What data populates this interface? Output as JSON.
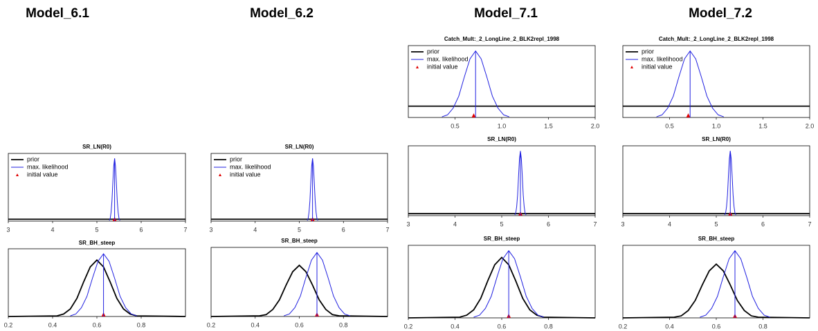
{
  "headers": [
    {
      "text": "Model_6.1",
      "color": "#e8140c"
    },
    {
      "text": "Model_6.2",
      "color": "#1fa64a"
    },
    {
      "text": "Model_7.1",
      "color": "#e8140c"
    },
    {
      "text": "Model_7.2",
      "color": "#1fa64a"
    }
  ],
  "chart_data": [
    {
      "type": "line",
      "title": "SR_LN(R0)",
      "xlim": [
        3,
        7
      ],
      "xticks": [
        3,
        4,
        5,
        6,
        7
      ],
      "ylim": [
        0,
        1.08
      ],
      "legend": "top-left",
      "estimate": 5.4,
      "series": [
        {
          "name": "prior",
          "color": "#000000",
          "x": [
            3,
            7
          ],
          "values": [
            0.03,
            0.03
          ]
        },
        {
          "name": "max. likelihood",
          "color": "#2020e0",
          "x": [
            5.28,
            5.3,
            5.32,
            5.34,
            5.36,
            5.38,
            5.4,
            5.42,
            5.44,
            5.46,
            5.48,
            5.5,
            5.52
          ],
          "values": [
            0.01,
            0.04,
            0.14,
            0.32,
            0.61,
            0.88,
            1,
            0.88,
            0.61,
            0.32,
            0.14,
            0.04,
            0.01
          ]
        },
        {
          "name": "initial value",
          "color": "#e00000",
          "x": [
            5.4
          ],
          "values": [
            0
          ]
        }
      ]
    },
    {
      "type": "line",
      "title": "SR_BH_steep",
      "xlim": [
        0.2,
        1.0
      ],
      "xticks": [
        0.2,
        0.4,
        0.6,
        0.8
      ],
      "ylim": [
        0,
        1.08
      ],
      "estimate": 0.63,
      "series": [
        {
          "color": "#000000",
          "x": [
            0.2,
            0.42,
            0.45,
            0.48,
            0.51,
            0.54,
            0.57,
            0.6,
            0.63,
            0.66,
            0.69,
            0.72,
            0.75,
            0.78,
            1.0
          ],
          "values": [
            0,
            0.01,
            0.04,
            0.12,
            0.29,
            0.55,
            0.79,
            0.9,
            0.79,
            0.55,
            0.29,
            0.12,
            0.04,
            0.01,
            0
          ]
        },
        {
          "color": "#2020e0",
          "x": [
            0.48,
            0.505,
            0.53,
            0.555,
            0.58,
            0.605,
            0.63,
            0.655,
            0.68,
            0.705,
            0.73,
            0.755,
            0.78
          ],
          "values": [
            0.01,
            0.04,
            0.14,
            0.32,
            0.61,
            0.88,
            1,
            0.88,
            0.61,
            0.32,
            0.14,
            0.04,
            0.01
          ]
        },
        {
          "color": "#e00000",
          "x": [
            0.63
          ],
          "values": [
            0
          ]
        }
      ]
    },
    {
      "type": "line",
      "title": "SR_LN(R0)",
      "xlim": [
        3,
        7
      ],
      "xticks": [
        3,
        4,
        5,
        6,
        7
      ],
      "ylim": [
        0,
        1.08
      ],
      "legend": "top-left",
      "estimate": 5.3,
      "series": [
        {
          "name": "prior",
          "color": "#000000",
          "x": [
            3,
            7
          ],
          "values": [
            0.03,
            0.03
          ]
        },
        {
          "name": "max. likelihood",
          "color": "#2020e0",
          "x": [
            5.18,
            5.2,
            5.22,
            5.24,
            5.26,
            5.28,
            5.3,
            5.32,
            5.34,
            5.36,
            5.38,
            5.4,
            5.42
          ],
          "values": [
            0.01,
            0.04,
            0.14,
            0.32,
            0.61,
            0.88,
            1,
            0.88,
            0.61,
            0.32,
            0.14,
            0.04,
            0.01
          ]
        },
        {
          "name": "initial value",
          "color": "#e00000",
          "x": [
            5.3
          ],
          "values": [
            0
          ]
        }
      ]
    },
    {
      "type": "line",
      "title": "SR_BH_steep",
      "xlim": [
        0.2,
        1.0
      ],
      "xticks": [
        0.2,
        0.4,
        0.6,
        0.8
      ],
      "ylim": [
        0,
        1.08
      ],
      "estimate": 0.68,
      "series": [
        {
          "color": "#000000",
          "x": [
            0.2,
            0.42,
            0.45,
            0.48,
            0.51,
            0.54,
            0.57,
            0.6,
            0.63,
            0.66,
            0.69,
            0.72,
            0.75,
            0.78,
            1.0
          ],
          "values": [
            0,
            0.01,
            0.03,
            0.11,
            0.26,
            0.49,
            0.7,
            0.8,
            0.7,
            0.49,
            0.26,
            0.11,
            0.03,
            0.01,
            0
          ]
        },
        {
          "color": "#2020e0",
          "x": [
            0.53,
            0.555,
            0.58,
            0.605,
            0.63,
            0.655,
            0.68,
            0.705,
            0.73,
            0.755,
            0.78,
            0.805,
            0.83
          ],
          "values": [
            0.01,
            0.04,
            0.14,
            0.32,
            0.61,
            0.88,
            1,
            0.88,
            0.61,
            0.32,
            0.14,
            0.04,
            0.01
          ]
        },
        {
          "color": "#e00000",
          "x": [
            0.68
          ],
          "values": [
            0
          ]
        }
      ]
    },
    {
      "type": "line",
      "title": "Catch_Mult:_2_LongLine_2_BLK2repl_1998",
      "xlim": [
        0,
        2.0
      ],
      "xticks": [
        0.5,
        {
          "value": 1,
          "label": "1.0"
        },
        1.5,
        {
          "value": 2,
          "label": "2.0"
        }
      ],
      "ylim": [
        0,
        1.08
      ],
      "legend": "top-left",
      "estimate": 0.72,
      "series": [
        {
          "name": "prior",
          "color": "#000000",
          "x": [
            0,
            2
          ],
          "values": [
            0.17,
            0.17
          ]
        },
        {
          "name": "max. likelihood",
          "color": "#2020e0",
          "x": [
            0.36,
            0.42,
            0.48,
            0.54,
            0.6,
            0.66,
            0.72,
            0.78,
            0.84,
            0.9,
            0.96,
            1.02,
            1.08
          ],
          "values": [
            0.01,
            0.04,
            0.14,
            0.32,
            0.61,
            0.88,
            1,
            0.88,
            0.61,
            0.32,
            0.14,
            0.04,
            0.01
          ]
        },
        {
          "name": "initial value",
          "color": "#e00000",
          "x": [
            0.7
          ],
          "values": [
            0
          ]
        }
      ]
    },
    {
      "type": "line",
      "title": "SR_LN(R0)",
      "xlim": [
        3,
        7
      ],
      "xticks": [
        3,
        4,
        5,
        6,
        7
      ],
      "ylim": [
        0,
        1.08
      ],
      "estimate": 5.4,
      "series": [
        {
          "color": "#000000",
          "x": [
            3,
            7
          ],
          "values": [
            0.03,
            0.03
          ]
        },
        {
          "color": "#2020e0",
          "x": [
            5.28,
            5.3,
            5.32,
            5.34,
            5.36,
            5.38,
            5.4,
            5.42,
            5.44,
            5.46,
            5.48,
            5.5,
            5.52
          ],
          "values": [
            0.01,
            0.04,
            0.14,
            0.32,
            0.61,
            0.88,
            1,
            0.88,
            0.61,
            0.32,
            0.14,
            0.04,
            0.01
          ]
        },
        {
          "color": "#e00000",
          "x": [
            5.4
          ],
          "values": [
            0
          ]
        }
      ]
    },
    {
      "type": "line",
      "title": "SR_BH_steep",
      "xlim": [
        0.2,
        1.0
      ],
      "xticks": [
        0.2,
        0.4,
        0.6,
        0.8
      ],
      "ylim": [
        0,
        1.08
      ],
      "estimate": 0.63,
      "series": [
        {
          "color": "#000000",
          "x": [
            0.2,
            0.42,
            0.45,
            0.48,
            0.51,
            0.54,
            0.57,
            0.6,
            0.63,
            0.66,
            0.69,
            0.72,
            0.75,
            0.78,
            1.0
          ],
          "values": [
            0,
            0.01,
            0.04,
            0.12,
            0.29,
            0.55,
            0.79,
            0.9,
            0.79,
            0.55,
            0.29,
            0.12,
            0.04,
            0.01,
            0
          ]
        },
        {
          "color": "#2020e0",
          "x": [
            0.48,
            0.505,
            0.53,
            0.555,
            0.58,
            0.605,
            0.63,
            0.655,
            0.68,
            0.705,
            0.73,
            0.755,
            0.78
          ],
          "values": [
            0.01,
            0.04,
            0.14,
            0.32,
            0.61,
            0.88,
            1,
            0.88,
            0.61,
            0.32,
            0.14,
            0.04,
            0.01
          ]
        },
        {
          "color": "#e00000",
          "x": [
            0.63
          ],
          "values": [
            0
          ]
        }
      ]
    },
    {
      "type": "line",
      "title": "Catch_Mult:_2_LongLine_2_BLK2repl_1998",
      "xlim": [
        0,
        2.0
      ],
      "xticks": [
        0.5,
        {
          "value": 1,
          "label": "1.0"
        },
        1.5,
        {
          "value": 2,
          "label": "2.0"
        }
      ],
      "ylim": [
        0,
        1.08
      ],
      "legend": "top-left",
      "estimate": 0.72,
      "series": [
        {
          "name": "prior",
          "color": "#000000",
          "x": [
            0,
            2
          ],
          "values": [
            0.17,
            0.17
          ]
        },
        {
          "name": "max. likelihood",
          "color": "#2020e0",
          "x": [
            0.36,
            0.42,
            0.48,
            0.54,
            0.6,
            0.66,
            0.72,
            0.78,
            0.84,
            0.9,
            0.96,
            1.02,
            1.08
          ],
          "values": [
            0.01,
            0.04,
            0.14,
            0.32,
            0.61,
            0.88,
            1,
            0.88,
            0.61,
            0.32,
            0.14,
            0.04,
            0.01
          ]
        },
        {
          "name": "initial value",
          "color": "#e00000",
          "x": [
            0.7
          ],
          "values": [
            0
          ]
        }
      ]
    },
    {
      "type": "line",
      "title": "SR_LN(R0)",
      "xlim": [
        3,
        7
      ],
      "xticks": [
        3,
        4,
        5,
        6,
        7
      ],
      "ylim": [
        0,
        1.08
      ],
      "estimate": 5.3,
      "series": [
        {
          "color": "#000000",
          "x": [
            3,
            7
          ],
          "values": [
            0.03,
            0.03
          ]
        },
        {
          "color": "#2020e0",
          "x": [
            5.18,
            5.2,
            5.22,
            5.24,
            5.26,
            5.28,
            5.3,
            5.32,
            5.34,
            5.36,
            5.38,
            5.4,
            5.42
          ],
          "values": [
            0.01,
            0.04,
            0.14,
            0.32,
            0.61,
            0.88,
            1,
            0.88,
            0.61,
            0.32,
            0.14,
            0.04,
            0.01
          ]
        },
        {
          "color": "#e00000",
          "x": [
            5.3
          ],
          "values": [
            0
          ]
        }
      ]
    },
    {
      "type": "line",
      "title": "SR_BH_steep",
      "xlim": [
        0.2,
        1.0
      ],
      "xticks": [
        0.2,
        0.4,
        0.6,
        0.8
      ],
      "ylim": [
        0,
        1.08
      ],
      "estimate": 0.68,
      "series": [
        {
          "color": "#000000",
          "x": [
            0.2,
            0.42,
            0.45,
            0.48,
            0.51,
            0.54,
            0.57,
            0.6,
            0.63,
            0.66,
            0.69,
            0.72,
            0.75,
            0.78,
            1.0
          ],
          "values": [
            0,
            0.01,
            0.03,
            0.11,
            0.26,
            0.49,
            0.7,
            0.8,
            0.7,
            0.49,
            0.26,
            0.11,
            0.03,
            0.01,
            0
          ]
        },
        {
          "color": "#2020e0",
          "x": [
            0.53,
            0.555,
            0.58,
            0.605,
            0.63,
            0.655,
            0.68,
            0.705,
            0.73,
            0.755,
            0.78,
            0.805,
            0.83
          ],
          "values": [
            0.01,
            0.04,
            0.14,
            0.32,
            0.61,
            0.88,
            1,
            0.88,
            0.61,
            0.32,
            0.14,
            0.04,
            0.01
          ]
        },
        {
          "color": "#e00000",
          "x": [
            0.68
          ],
          "values": [
            0
          ]
        }
      ]
    }
  ]
}
